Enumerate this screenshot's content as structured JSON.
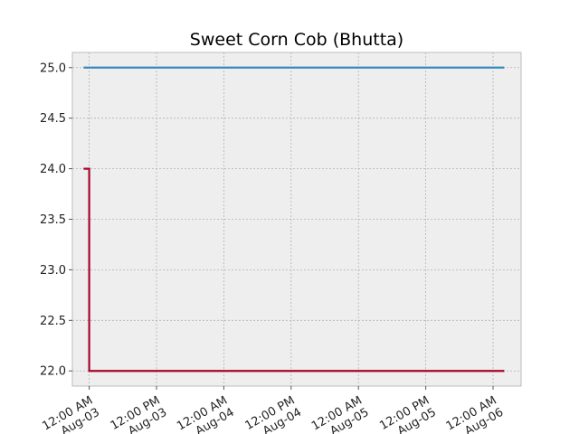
{
  "chart_data": {
    "type": "line",
    "title": "Sweet Corn Cob (Bhutta)",
    "xlabel": "",
    "ylabel": "",
    "x_axis": "datetime",
    "xlim": [
      "2023-08-02T21:00",
      "2023-08-06T05:00"
    ],
    "ylim": [
      21.85,
      25.15
    ],
    "x_ticks": [
      {
        "value": "2023-08-03T00:00",
        "line1": "12:00 AM",
        "line2": "Aug-03"
      },
      {
        "value": "2023-08-03T12:00",
        "line1": "12:00 PM",
        "line2": "Aug-03"
      },
      {
        "value": "2023-08-04T00:00",
        "line1": "12:00 AM",
        "line2": "Aug-04"
      },
      {
        "value": "2023-08-04T12:00",
        "line1": "12:00 PM",
        "line2": "Aug-04"
      },
      {
        "value": "2023-08-05T00:00",
        "line1": "12:00 AM",
        "line2": "Aug-05"
      },
      {
        "value": "2023-08-05T12:00",
        "line1": "12:00 PM",
        "line2": "Aug-05"
      },
      {
        "value": "2023-08-06T00:00",
        "line1": "12:00 AM",
        "line2": "Aug-06"
      }
    ],
    "y_ticks": [
      {
        "value": 22.0,
        "label": "22.0"
      },
      {
        "value": 22.5,
        "label": "22.5"
      },
      {
        "value": 23.0,
        "label": "23.0"
      },
      {
        "value": 23.5,
        "label": "23.5"
      },
      {
        "value": 24.0,
        "label": "24.0"
      },
      {
        "value": 24.5,
        "label": "24.5"
      },
      {
        "value": 25.0,
        "label": "25.0"
      }
    ],
    "grid": true,
    "series": [
      {
        "color": "#348abd",
        "step": false,
        "points": [
          {
            "x": "2023-08-02T23:00",
            "y": 25.0
          },
          {
            "x": "2023-08-06T02:00",
            "y": 25.0
          }
        ]
      },
      {
        "color": "#a60628",
        "step": true,
        "points": [
          {
            "x": "2023-08-02T23:00",
            "y": 24.0
          },
          {
            "x": "2023-08-03T00:00",
            "y": 22.0
          },
          {
            "x": "2023-08-06T02:00",
            "y": 22.0
          }
        ]
      }
    ]
  }
}
